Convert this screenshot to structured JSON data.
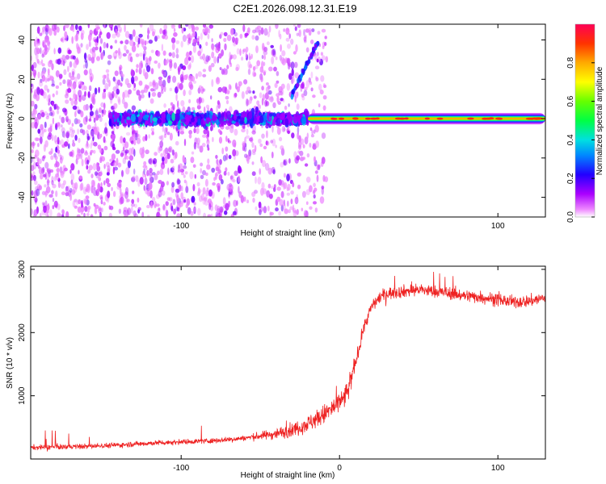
{
  "title": "C2E1.2026.098.12.31.E19",
  "colors": {
    "snr_line": "#ee2222",
    "dot_main": "#7722ff",
    "dot_light": "#c8a8ff"
  },
  "colorbar": {
    "label": "Normalized spectral amplitude",
    "ticks": [
      "0.0",
      "0.2",
      "0.4",
      "0.6",
      "0.8"
    ],
    "tick_values": [
      0.0,
      0.2,
      0.4,
      0.6,
      0.8
    ],
    "range": [
      0,
      1
    ]
  },
  "chart_data": [
    {
      "type": "heatmap",
      "title": "C2E1.2026.098.12.31.E19",
      "xlabel": "Height of straight line (km)",
      "ylabel": "Frequency (Hz)",
      "xlim": [
        -195,
        130
      ],
      "ylim": [
        -50,
        48
      ],
      "xticks": [
        -100,
        0,
        100
      ],
      "xtick_labels": [
        "-100",
        "0",
        "100"
      ],
      "yticks": [
        -40,
        -20,
        0,
        20,
        40
      ],
      "ytick_labels": [
        "-40",
        "-20",
        "0",
        "20",
        "40"
      ],
      "colorscale": "rainbow (magenta=0 → red=1)",
      "features": {
        "carrier_band": {
          "x": [
            -20,
            130
          ],
          "frequency": 0,
          "peak_amplitude": 0.9
        },
        "scattered_band": {
          "x": [
            -145,
            -20
          ],
          "frequency_range": [
            -10,
            8
          ]
        },
        "diagonal_track": {
          "x": [
            -30,
            -13
          ],
          "frequency_range": [
            12,
            40
          ]
        }
      }
    },
    {
      "type": "line",
      "xlabel": "Height of straight line (km)",
      "ylabel": "SNR (10 * v/v)",
      "xlim": [
        -195,
        130
      ],
      "ylim": [
        0,
        3050
      ],
      "xticks": [
        -100,
        0,
        100
      ],
      "xtick_labels": [
        "-100",
        "0",
        "100"
      ],
      "yticks": [
        1000,
        2000,
        3000
      ],
      "ytick_labels": [
        "1000",
        "2000",
        "3000"
      ],
      "series": [
        {
          "x": [
            -195,
            -180,
            -160,
            -140,
            -120,
            -100,
            -80,
            -60,
            -40,
            -30,
            -20,
            -10,
            0,
            5,
            10,
            15,
            20,
            25,
            30,
            40,
            50,
            60,
            70,
            80,
            90,
            100,
            110,
            120,
            130
          ],
          "values": [
            180,
            190,
            200,
            220,
            250,
            270,
            290,
            330,
            400,
            460,
            560,
            700,
            880,
            1050,
            1500,
            2050,
            2400,
            2550,
            2620,
            2650,
            2680,
            2650,
            2620,
            2580,
            2560,
            2520,
            2480,
            2500,
            2550
          ]
        }
      ]
    }
  ]
}
